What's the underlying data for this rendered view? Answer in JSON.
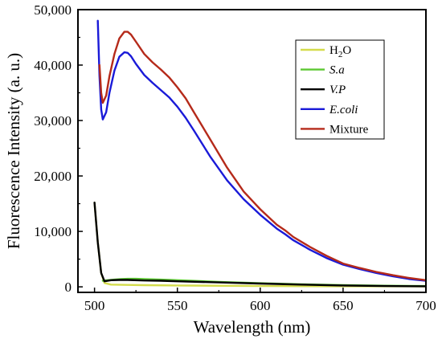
{
  "chart_data": {
    "type": "line",
    "title": "",
    "xlabel": "Wavelength (nm)",
    "ylabel": "Fluorescence Intensity (a. u.)",
    "xlim": [
      490,
      700
    ],
    "ylim": [
      -1000,
      50000
    ],
    "x_ticks": [
      500,
      550,
      600,
      650,
      700
    ],
    "x_tick_labels": [
      "500",
      "550",
      "600",
      "650",
      "700"
    ],
    "y_ticks": [
      0,
      10000,
      20000,
      30000,
      40000,
      50000
    ],
    "y_tick_labels": [
      "0",
      "10,000",
      "20,000",
      "30,000",
      "40,000",
      "50,000"
    ],
    "grid": false,
    "legend_position": "top-right",
    "series": [
      {
        "name": "H2O",
        "name_main": "H",
        "name_sub": "2",
        "name_tail": "O",
        "name_italic": false,
        "color": "#d4dc4c",
        "x": [
          500,
          502,
          504,
          506,
          510,
          520,
          530,
          550,
          600,
          650,
          700
        ],
        "y": [
          15200,
          8000,
          2500,
          700,
          400,
          350,
          300,
          250,
          150,
          100,
          80
        ]
      },
      {
        "name": "S.a",
        "name_italic": true,
        "color": "#5cc832",
        "x": [
          505,
          508,
          512,
          516,
          520,
          525,
          530,
          540,
          550,
          575,
          600,
          625,
          650,
          675,
          700
        ],
        "y": [
          1100,
          1200,
          1300,
          1400,
          1450,
          1450,
          1400,
          1300,
          1200,
          900,
          650,
          450,
          300,
          200,
          150
        ]
      },
      {
        "name": "V.P",
        "name_italic": true,
        "color": "#000000",
        "x": [
          500,
          502,
          504,
          506,
          510,
          515,
          520,
          530,
          540,
          550,
          575,
          600,
          625,
          650,
          675,
          700
        ],
        "y": [
          15200,
          8000,
          2500,
          1000,
          1200,
          1250,
          1250,
          1150,
          1100,
          1000,
          800,
          600,
          400,
          250,
          150,
          100
        ]
      },
      {
        "name": "E.coli",
        "name_italic": true,
        "color": "#1a1ad8",
        "x": [
          502,
          503,
          504,
          505,
          507,
          509,
          512,
          515,
          518,
          520,
          522,
          525,
          530,
          535,
          540,
          545,
          550,
          555,
          560,
          565,
          570,
          580,
          590,
          600,
          610,
          615,
          620,
          630,
          640,
          650,
          660,
          670,
          680,
          690,
          700
        ],
        "y": [
          48000,
          38000,
          32000,
          30200,
          31500,
          35000,
          39000,
          41500,
          42300,
          42200,
          41600,
          40200,
          38200,
          36800,
          35500,
          34200,
          32500,
          30500,
          28200,
          25800,
          23400,
          19200,
          15800,
          13000,
          10500,
          9500,
          8400,
          6700,
          5200,
          4000,
          3200,
          2500,
          1900,
          1400,
          1100
        ]
      },
      {
        "name": "Mixture",
        "name_italic": false,
        "color": "#b52a1a",
        "x": [
          503,
          504,
          505,
          507,
          509,
          512,
          515,
          518,
          520,
          522,
          525,
          530,
          535,
          540,
          545,
          550,
          555,
          560,
          565,
          570,
          580,
          590,
          600,
          610,
          615,
          620,
          630,
          640,
          650,
          660,
          670,
          680,
          690,
          700
        ],
        "y": [
          40000,
          35000,
          33200,
          34500,
          38000,
          42000,
          44800,
          46000,
          46000,
          45500,
          44200,
          42000,
          40500,
          39200,
          37800,
          36000,
          34000,
          31500,
          29000,
          26500,
          21500,
          17200,
          14000,
          11200,
          10200,
          9000,
          7200,
          5600,
          4200,
          3400,
          2700,
          2100,
          1600,
          1200
        ]
      }
    ]
  }
}
